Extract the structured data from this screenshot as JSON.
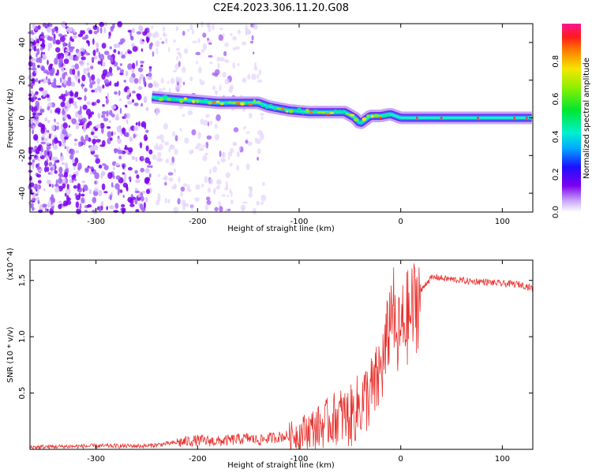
{
  "title": "C2E4.2023.306.11.20.G08",
  "chart_data": [
    {
      "type": "heatmap",
      "title": "C2E4.2023.306.11.20.G08",
      "xlabel": "Height of straight line (km)",
      "ylabel": "Frequency (Hz)",
      "xlim": [
        -365,
        130
      ],
      "ylim": [
        -50,
        50
      ],
      "xticks": [
        -300,
        -200,
        -100,
        0,
        100
      ],
      "yticks": [
        -40,
        -20,
        0,
        20,
        40
      ],
      "noise_region_x": [
        -365,
        -135
      ],
      "signal_track": {
        "x": [
          -245,
          -225,
          -200,
          -180,
          -160,
          -140,
          -130,
          -110,
          -90,
          -70,
          -55,
          -45,
          -40,
          -30,
          -20,
          -10,
          0,
          20,
          60,
          100,
          130
        ],
        "y": [
          11,
          10,
          9,
          8,
          8,
          8,
          6,
          4,
          3,
          3,
          3,
          0,
          -3,
          1,
          1,
          2,
          0,
          0,
          0,
          0,
          0
        ]
      },
      "colorbar": {
        "label": "Normalized spectral amplitude",
        "range": [
          0.0,
          1.0
        ],
        "ticks": [
          "0.0",
          "0.2",
          "0.4",
          "0.6",
          "0.8"
        ]
      },
      "grid": false
    },
    {
      "type": "line",
      "xlabel": "Height of straight line (km)",
      "ylabel": "SNR (10 * v/v)",
      "multiplier": "(x10^4)",
      "xlim": [
        -365,
        130
      ],
      "ylim": [
        0.0,
        1.68
      ],
      "xticks": [
        -300,
        -200,
        -100,
        0,
        100
      ],
      "yticks": [
        "0.5",
        "1.0",
        "1.5"
      ],
      "series": [
        {
          "color": "#e8312d",
          "x": [
            -365,
            -300,
            -250,
            -220,
            -200,
            -180,
            -150,
            -140,
            -130,
            -110,
            -100,
            -90,
            -80,
            -70,
            -60,
            -50,
            -40,
            -30,
            -25,
            -20,
            -15,
            -10,
            -8,
            -5,
            0,
            5,
            10,
            15,
            20,
            25,
            30,
            35,
            40,
            50,
            60,
            70,
            80,
            90,
            100,
            110,
            120,
            130
          ],
          "y": [
            0.02,
            0.03,
            0.03,
            0.06,
            0.08,
            0.07,
            0.1,
            0.08,
            0.1,
            0.12,
            0.14,
            0.18,
            0.2,
            0.25,
            0.3,
            0.28,
            0.4,
            0.5,
            0.55,
            0.7,
            0.85,
            1.2,
            1.4,
            0.9,
            1.05,
            1.15,
            1.2,
            1.3,
            1.4,
            1.48,
            1.52,
            1.53,
            1.52,
            1.51,
            1.5,
            1.49,
            1.49,
            1.48,
            1.47,
            1.47,
            1.46,
            1.43
          ]
        }
      ],
      "grid": false
    }
  ]
}
